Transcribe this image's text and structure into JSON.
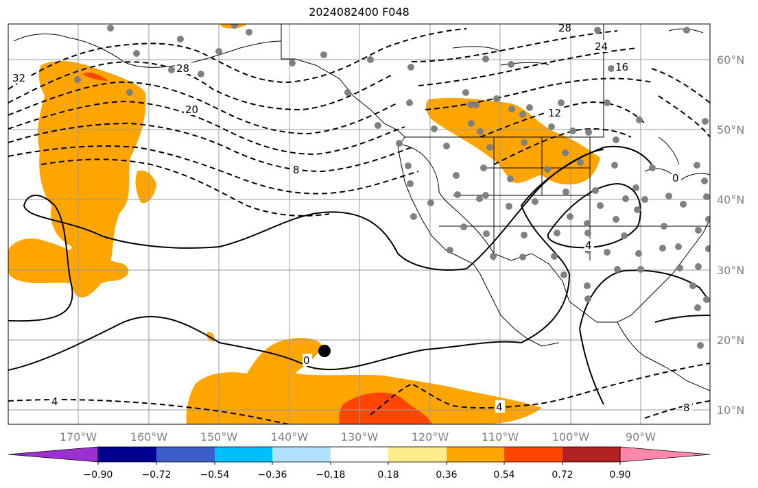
{
  "title": "2024082400 F048",
  "longitude_labels": [
    "170°W",
    "160°W",
    "150°W",
    "140°W",
    "130°W",
    "120°W",
    "110°W",
    "100°W",
    "90°W"
  ],
  "latitude_labels": [
    "60°N",
    "50°N",
    "40°N",
    "30°N",
    "20°N",
    "10°N"
  ],
  "colorbar": {
    "ticks": [
      "−0.90",
      "−0.72",
      "−0.54",
      "−0.36",
      "−0.18",
      "0.18",
      "0.36",
      "0.54",
      "0.72",
      "0.90"
    ],
    "colors": [
      "#9b30d0",
      "#000090",
      "#3a5fcd",
      "#00bfff",
      "#b0e2ff",
      "#ffffff",
      "#ffec8b",
      "#ffa500",
      "#ff4500",
      "#b22222",
      "#ff88aa"
    ]
  },
  "fill_colors": {
    "orange": "#ffa500",
    "red": "#ff4500"
  },
  "contour_labels": [
    "32",
    "28",
    "28",
    "24",
    "20",
    "16",
    "12",
    "8",
    "4",
    "4",
    "4",
    "0",
    "0",
    "8"
  ]
}
